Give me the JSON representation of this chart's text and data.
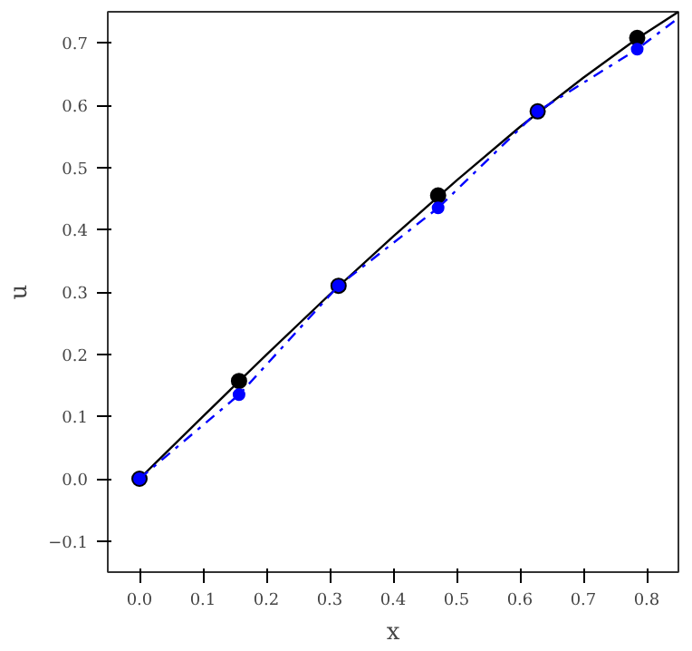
{
  "chart_data": {
    "type": "line",
    "xlabel": "x",
    "ylabel": "u",
    "series": [
      {
        "color": "#000000",
        "line_style": "solid",
        "marker": "none",
        "x": [
          0,
          0.1,
          0.2,
          0.3,
          0.4,
          0.5,
          0.6,
          0.7,
          0.785,
          0.85
        ],
        "values": [
          0,
          0.1,
          0.199,
          0.296,
          0.389,
          0.479,
          0.565,
          0.644,
          0.707,
          0.75
        ]
      },
      {
        "type": "scatter",
        "color": "#000000",
        "marker": "circle",
        "x": [
          0,
          0.157,
          0.314,
          0.471,
          0.628,
          0.785
        ],
        "values": [
          0,
          0.157,
          0.31,
          0.455,
          0.59,
          0.708
        ]
      },
      {
        "color": "#0000ff",
        "line_style": "dashdot",
        "marker": "none",
        "x": [
          0,
          0.157,
          0.314,
          0.471,
          0.628,
          0.785,
          0.85
        ],
        "values": [
          0,
          0.135,
          0.31,
          0.435,
          0.59,
          0.69,
          0.74
        ]
      },
      {
        "type": "scatter",
        "color": "#0000ff",
        "marker": "circle",
        "x": [
          0,
          0.157,
          0.314,
          0.471,
          0.628,
          0.785
        ],
        "values": [
          0,
          0.135,
          0.31,
          0.435,
          0.59,
          0.69
        ]
      }
    ],
    "xlim": [
      -0.05,
      0.85
    ],
    "ylim": [
      -0.15,
      0.75
    ],
    "xticks": [
      {
        "value": 0,
        "label": "0.0"
      },
      0.1,
      0.2,
      0.3,
      0.4,
      0.5,
      0.6,
      0.7,
      0.8
    ],
    "yticks": [
      {
        "value": -0.1,
        "label": "−0.1"
      },
      {
        "value": 0,
        "label": "0.0"
      },
      0.1,
      0.2,
      0.3,
      0.4,
      0.5,
      0.6,
      0.7
    ],
    "grid": false
  }
}
